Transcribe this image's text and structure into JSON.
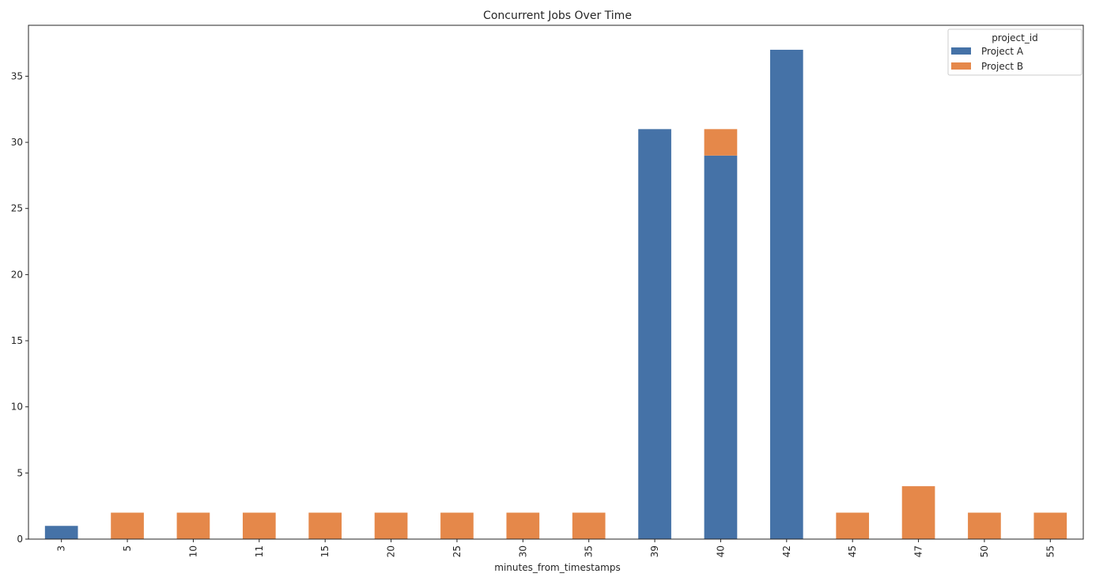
{
  "chart_data": {
    "type": "bar",
    "stacked": true,
    "title": "Concurrent Jobs Over Time",
    "xlabel": "minutes_from_timestamps",
    "ylabel": "",
    "categories": [
      "3",
      "5",
      "10",
      "11",
      "15",
      "20",
      "25",
      "30",
      "35",
      "39",
      "40",
      "42",
      "45",
      "47",
      "50",
      "55"
    ],
    "series": [
      {
        "name": "Project A",
        "color": "#4572a7",
        "values": [
          1,
          0,
          0,
          0,
          0,
          0,
          0,
          0,
          0,
          31,
          29,
          37,
          0,
          0,
          0,
          0
        ]
      },
      {
        "name": "Project B",
        "color": "#e5884a",
        "values": [
          0,
          2,
          2,
          2,
          2,
          2,
          2,
          2,
          2,
          0,
          2,
          0,
          2,
          4,
          2,
          2
        ]
      }
    ],
    "ylim": [
      0,
      38.85
    ],
    "yticks": [
      0,
      5,
      10,
      15,
      20,
      25,
      30,
      35
    ],
    "grid": false,
    "legend": {
      "title": "project_id",
      "position": "top-right"
    }
  }
}
